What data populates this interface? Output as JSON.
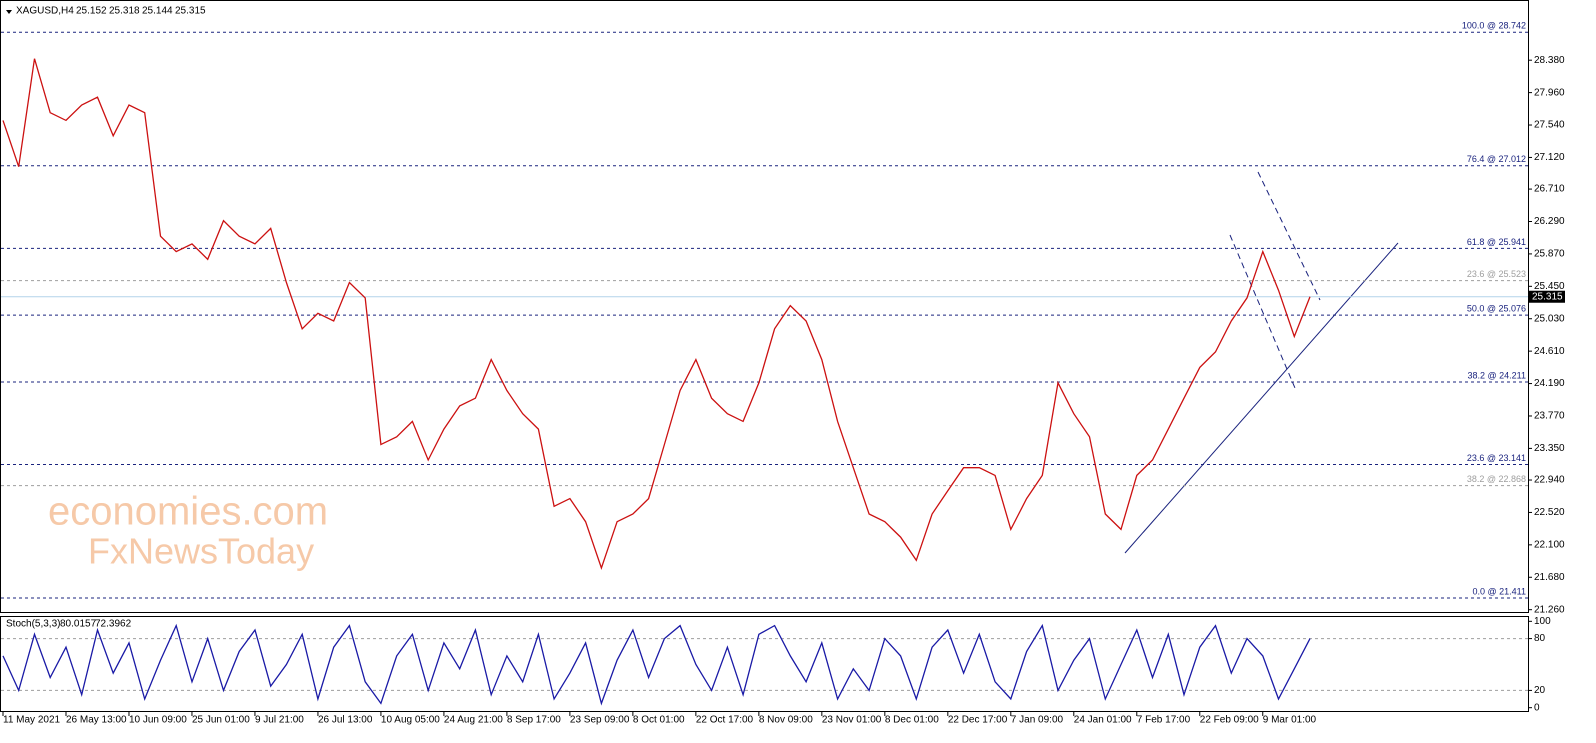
{
  "chart_data": [
    {
      "type": "line",
      "symbol": "XAGUSD,H4",
      "ohlc": [
        25.152,
        25.318,
        25.144,
        25.315
      ],
      "watermark": [
        "economies.com",
        "FxNewsToday"
      ],
      "categories": [
        "11 May 2021",
        null,
        null,
        null,
        "26 May 13:00",
        null,
        null,
        null,
        "10 Jun 09:00",
        null,
        null,
        null,
        "25 Jun 01:00",
        null,
        null,
        null,
        "9 Jul 21:00",
        null,
        null,
        null,
        "26 Jul 13:00",
        null,
        null,
        null,
        "10 Aug 05:00",
        null,
        null,
        null,
        "24 Aug 21:00",
        null,
        null,
        null,
        "8 Sep 17:00",
        null,
        null,
        null,
        "23 Sep 09:00",
        null,
        null,
        null,
        "8 Oct 01:00",
        null,
        null,
        null,
        "22 Oct 17:00",
        null,
        null,
        null,
        "8 Nov 09:00",
        null,
        null,
        null,
        "23 Nov 01:00",
        null,
        null,
        null,
        "8 Dec 01:00",
        null,
        null,
        null,
        "22 Dec 17:00",
        null,
        null,
        null,
        "7 Jan 09:00",
        null,
        null,
        null,
        "24 Jan 01:00",
        null,
        null,
        null,
        "7 Feb 17:00",
        null,
        null,
        null,
        "22 Feb 09:00",
        null,
        null,
        null,
        "9 Mar 01:00",
        null,
        null,
        null
      ],
      "values": [
        27.6,
        27.0,
        28.4,
        27.7,
        27.6,
        27.8,
        27.9,
        27.4,
        27.8,
        27.7,
        26.1,
        25.9,
        26.0,
        25.8,
        26.3,
        26.1,
        26.0,
        26.2,
        25.5,
        24.9,
        25.1,
        25.0,
        25.5,
        25.3,
        23.4,
        23.5,
        23.7,
        23.2,
        23.6,
        23.9,
        24.0,
        24.5,
        24.1,
        23.8,
        23.6,
        22.6,
        22.7,
        22.4,
        21.8,
        22.4,
        22.5,
        22.7,
        23.4,
        24.1,
        24.5,
        24.0,
        23.8,
        23.7,
        24.2,
        24.9,
        25.2,
        25.0,
        24.5,
        23.7,
        23.1,
        22.5,
        22.4,
        22.2,
        21.9,
        22.5,
        22.8,
        23.1,
        23.1,
        23.0,
        22.3,
        22.7,
        23.0,
        24.2,
        23.8,
        23.5,
        22.5,
        22.3,
        23.0,
        23.2,
        23.6,
        24.0,
        24.4,
        24.6,
        25.0,
        25.3,
        25.9,
        25.4,
        24.8,
        25.315
      ],
      "color": "#cc1111",
      "ylim": [
        21.23,
        29.16
      ],
      "yticks": [
        {
          "value": 28.38,
          "label": "28.380"
        },
        {
          "value": 27.96,
          "label": "27.960"
        },
        {
          "value": 27.54,
          "label": "27.540"
        },
        {
          "value": 27.12,
          "label": "27.120"
        },
        {
          "value": 26.71,
          "label": "26.710"
        },
        {
          "value": 26.29,
          "label": "26.290"
        },
        {
          "value": 25.87,
          "label": "25.870"
        },
        {
          "value": 25.45,
          "label": "25.450"
        },
        {
          "value": 25.03,
          "label": "25.030"
        },
        {
          "value": 24.61,
          "label": "24.610"
        },
        {
          "value": 24.19,
          "label": "24.190"
        },
        {
          "value": 23.77,
          "label": "23.770"
        },
        {
          "value": 23.35,
          "label": "23.350"
        },
        {
          "value": 22.94,
          "label": "22.940"
        },
        {
          "value": 22.52,
          "label": "22.520"
        },
        {
          "value": 22.1,
          "label": "22.100"
        },
        {
          "value": 21.68,
          "label": "21.680"
        },
        {
          "value": 21.26,
          "label": "21.260"
        }
      ],
      "levels": [
        {
          "value": 28.742,
          "label": "100.0 @ 28.742",
          "color": "#1a237e"
        },
        {
          "value": 27.012,
          "label": "76.4 @ 27.012",
          "color": "#1a237e"
        },
        {
          "value": 25.941,
          "label": "61.8 @ 25.941",
          "color": "#1a237e"
        },
        {
          "value": 25.523,
          "label": "23.6 @ 25.523",
          "color": "#9e9e9e"
        },
        {
          "value": 25.076,
          "label": "50.0 @ 25.076",
          "color": "#1a237e"
        },
        {
          "value": 24.211,
          "label": "38.2 @ 24.211",
          "color": "#1a237e"
        },
        {
          "value": 23.141,
          "label": "23.6 @ 23.141",
          "color": "#1a237e"
        },
        {
          "value": 22.868,
          "label": "38.2 @ 22.868",
          "color": "#9e9e9e"
        },
        {
          "value": 21.411,
          "label": "0.0 @ 21.411",
          "color": "#1a237e"
        }
      ],
      "last": 25.315,
      "last_color": "#b3d4ea"
    },
    {
      "type": "line",
      "title": "Stoch(5,3,3)",
      "main_value": 80.0157,
      "signal_value": 72.3962,
      "values": [
        60,
        20,
        85,
        35,
        70,
        15,
        90,
        40,
        75,
        10,
        55,
        95,
        30,
        80,
        20,
        65,
        90,
        25,
        50,
        85,
        10,
        70,
        95,
        30,
        5,
        60,
        85,
        20,
        75,
        45,
        90,
        15,
        60,
        30,
        85,
        10,
        40,
        75,
        5,
        55,
        90,
        35,
        80,
        95,
        50,
        20,
        70,
        15,
        85,
        95,
        60,
        30,
        75,
        10,
        45,
        20,
        80,
        60,
        10,
        70,
        90,
        40,
        85,
        30,
        10,
        65,
        95,
        20,
        55,
        80,
        10,
        50,
        90,
        35,
        85,
        15,
        70,
        95,
        40,
        80,
        60,
        10,
        45,
        80.0157
      ],
      "color": "#1a1aa6",
      "ylim": [
        -5,
        105
      ],
      "yticks": [
        100,
        80,
        20,
        0
      ],
      "levels": [
        80,
        20
      ]
    }
  ]
}
